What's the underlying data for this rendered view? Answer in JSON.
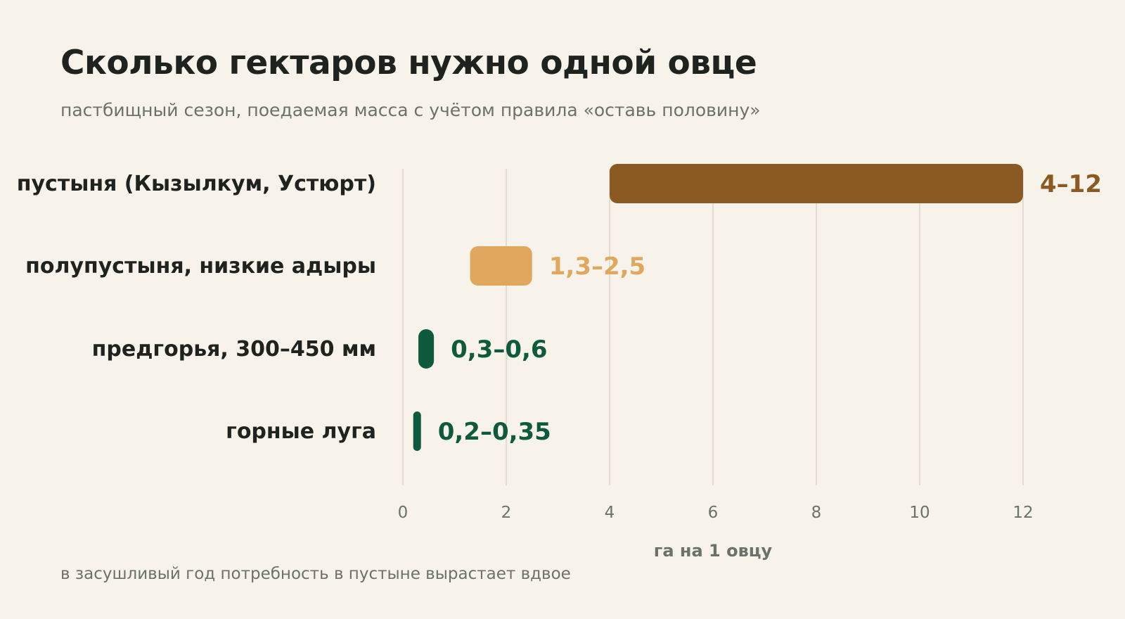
{
  "title": "Сколько гектаров нужно одной овце",
  "subtitle": "пастбищный сезон, поедаемая масса с учётом правила «оставь половину»",
  "footnote": "в засушливый год потребность в пустыне вырастает вдвое",
  "chart_data": {
    "type": "bar",
    "orientation": "horizontal",
    "range_bars": true,
    "title": "Сколько гектаров нужно одной овце",
    "subtitle": "пастбищный сезон, поедаемая масса с учётом правила «оставь половину»",
    "xlabel": "га на 1 овцу",
    "ylabel": "",
    "xlim": [
      0,
      12
    ],
    "xticks": [
      0,
      2,
      4,
      6,
      8,
      10,
      12
    ],
    "xtick_labels": [
      "0",
      "2",
      "4",
      "6",
      "8",
      "10",
      "12"
    ],
    "grid": "vertical",
    "categories": [
      "пустыня (Кызылкум, Устюрт)",
      "полупустыня, низкие адыры",
      "предгорья, 300–450 мм",
      "горные луга"
    ],
    "ranges": [
      [
        4,
        12
      ],
      [
        1.3,
        2.5
      ],
      [
        0.3,
        0.6
      ],
      [
        0.2,
        0.35
      ]
    ],
    "value_labels": [
      "4–12",
      "1,3–2,5",
      "0,3–0,6",
      "0,2–0,35"
    ],
    "colors": [
      "#8b5a22",
      "#e0a85e",
      "#0f5a3c",
      "#0f5a3c"
    ],
    "gridline_color": "#e2ddd0",
    "axis_text_color": "#6b7269",
    "category_text_color": "#1e231f"
  }
}
